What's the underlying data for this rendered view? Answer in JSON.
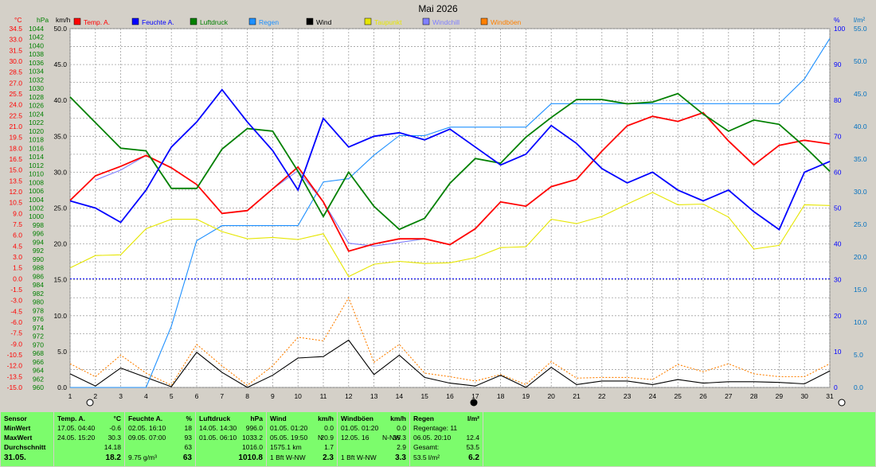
{
  "chart_data": {
    "type": "line",
    "title": "Mai 2026",
    "x_ticks": [
      "1",
      "2",
      "3",
      "4",
      "5",
      "6",
      "7",
      "8",
      "9",
      "10",
      "11",
      "12",
      "13",
      "14",
      "15",
      "16",
      "17",
      "18",
      "19",
      "20",
      "21",
      "22",
      "23",
      "24",
      "25",
      "26",
      "27",
      "28",
      "29",
      "30",
      "31"
    ],
    "axes": {
      "temp_c": {
        "unit": "°C",
        "min": -15.0,
        "max": 34.5,
        "step": 1.5,
        "color": "#ff0000"
      },
      "pressure_hpa": {
        "unit": "hPa",
        "min": 960,
        "max": 1044,
        "step": 2,
        "color": "#008000"
      },
      "wind_kmh": {
        "unit": "km/h",
        "min": 0,
        "max": 50,
        "step": 5,
        "color": "#000000"
      },
      "humidity_pct": {
        "unit": "%",
        "min": 0,
        "max": 100,
        "step": 10,
        "color": "#0000ff"
      },
      "rain_lm2": {
        "unit": "l/m²",
        "min": 0,
        "max": 55,
        "step": 5,
        "color": "#0070c0"
      }
    },
    "legend": [
      {
        "name": "Temp. A.",
        "color": "#ff0000"
      },
      {
        "name": "Feuchte A.",
        "color": "#0000ff"
      },
      {
        "name": "Luftdruck",
        "color": "#008000"
      },
      {
        "name": "Regen",
        "color": "#1e90ff"
      },
      {
        "name": "Wind",
        "color": "#000000"
      },
      {
        "name": "Taupunkt",
        "color": "#e6e600"
      },
      {
        "name": "Windchill",
        "color": "#8080ff"
      },
      {
        "name": "Windböen",
        "color": "#ff8000"
      }
    ],
    "series": [
      {
        "name": "Temp. A.",
        "axis": "temp_c",
        "color": "#ff0000",
        "values": [
          10.8,
          14.2,
          15.5,
          17.0,
          15.3,
          13.0,
          9.0,
          9.4,
          12.4,
          15.4,
          10.6,
          3.8,
          4.8,
          5.5,
          5.5,
          4.7,
          6.9,
          10.6,
          10.0,
          12.7,
          13.7,
          17.6,
          21.1,
          22.4,
          21.7,
          22.9,
          19.0,
          15.7,
          18.4,
          19.1,
          18.6
        ]
      },
      {
        "name": "Feuchte A.",
        "axis": "humidity_pct",
        "color": "#0000ff",
        "values": [
          52,
          50,
          46,
          55,
          67,
          74,
          83,
          74,
          66,
          55,
          75,
          67,
          70,
          71,
          69,
          72,
          67,
          62,
          65,
          73,
          68,
          61,
          57,
          60,
          55,
          52,
          55,
          49,
          44,
          60,
          63
        ]
      },
      {
        "name": "Luftdruck",
        "axis": "pressure_hpa",
        "color": "#008000",
        "values": [
          1028,
          1022,
          1016,
          1015.4,
          1006.6,
          1006.6,
          1015.8,
          1020.6,
          1020.0,
          1010.6,
          1000.0,
          1010.4,
          1002.4,
          997.0,
          999.6,
          1007.8,
          1013.6,
          1012.5,
          1018.6,
          1023.2,
          1027.4,
          1027.4,
          1026.4,
          1026.8,
          1028.8,
          1024.0,
          1020.0,
          1022.6,
          1021.6,
          1016.4,
          1010.6
        ]
      },
      {
        "name": "Regen",
        "axis": "rain_lm2",
        "color": "#1e90ff",
        "values": [
          0,
          0,
          0,
          0,
          9.4,
          22.5,
          24.8,
          24.8,
          24.8,
          24.8,
          31.5,
          32.0,
          35.6,
          38.6,
          38.6,
          39.9,
          39.9,
          39.9,
          39.9,
          43.5,
          43.5,
          43.5,
          43.5,
          43.5,
          43.5,
          43.5,
          43.5,
          43.5,
          43.5,
          47.3,
          53.5
        ]
      },
      {
        "name": "Wind",
        "axis": "wind_kmh",
        "color": "#000000",
        "values": [
          1.9,
          0.2,
          2.7,
          1.4,
          0.1,
          4.9,
          2.1,
          0.0,
          1.7,
          4.1,
          4.3,
          6.6,
          1.8,
          4.5,
          1.4,
          0.6,
          0.2,
          1.7,
          0.0,
          2.8,
          0.4,
          0.9,
          0.9,
          0.4,
          1.1,
          0.6,
          0.8,
          0.8,
          0.7,
          0.5,
          2.3
        ]
      },
      {
        "name": "Taupunkt",
        "axis": "temp_c",
        "color": "#e6e600",
        "values": [
          1.5,
          3.2,
          3.3,
          6.9,
          8.2,
          8.2,
          6.5,
          5.5,
          5.7,
          5.4,
          6.2,
          0.3,
          2.0,
          2.4,
          2.1,
          2.2,
          2.9,
          4.3,
          4.4,
          8.2,
          7.6,
          8.6,
          10.3,
          11.9,
          10.2,
          10.3,
          8.5,
          4.1,
          4.6,
          10.2,
          10.1
        ]
      },
      {
        "name": "Windchill",
        "axis": "temp_c",
        "color": "#8080ff",
        "values": [
          null,
          13.6,
          15.0,
          17.0,
          15.3,
          13.0,
          9.0,
          9.4,
          12.4,
          14.9,
          10.6,
          4.9,
          4.5,
          5.0,
          5.5,
          null,
          null,
          null,
          null,
          null,
          null,
          null,
          null,
          null,
          null,
          null,
          null,
          null,
          null,
          null,
          null
        ]
      },
      {
        "name": "Windböen",
        "axis": "wind_kmh",
        "color": "#ff8000",
        "values": [
          3.3,
          1.5,
          4.5,
          2.0,
          0.3,
          6.0,
          3.0,
          0.3,
          3.0,
          7.0,
          6.5,
          12.5,
          3.5,
          6.0,
          2.0,
          1.5,
          0.9,
          1.8,
          0.4,
          3.6,
          1.3,
          1.4,
          1.4,
          1.1,
          3.2,
          2.2,
          3.3,
          1.9,
          1.5,
          1.5,
          3.3
        ]
      }
    ]
  },
  "table": {
    "sensor": {
      "title": "Sensor",
      "min": "MinWert",
      "max": "MaxWert",
      "avg": "Durchschnitt",
      "date": "31.05."
    },
    "temp": {
      "title": "Temp. A.",
      "unit": "°C",
      "min_date": "17.05.  04:40",
      "min_val": "-0.6",
      "max_date": "24.05.  15:20",
      "max_val": "30.3",
      "avg": "14.18",
      "cur": "18.2"
    },
    "hum": {
      "title": "Feuchte A.",
      "unit": "%",
      "min_date": "02.05.  16:10",
      "min_val": "18",
      "max_date": "09.05.  07:00",
      "max_val": "93",
      "avg": "63",
      "abs": "9.75 g/m³",
      "cur": "63"
    },
    "press": {
      "title": "Luftdruck",
      "unit": "hPa",
      "min_date": "14.05.  14:30",
      "min_val": "996.0",
      "max_date": "01.05.  06:10",
      "max_val": "1033.2",
      "avg": "1016.0",
      "cur": "1010.8"
    },
    "wind": {
      "title": "Wind",
      "unit": "km/h",
      "min_date": "01.05.  01:20",
      "min_val": "0.0",
      "max_date": "05.05.  19:50",
      "max_dir": "N",
      "max_val": "20.9",
      "dist": "1575.1 km",
      "avg": "1.7",
      "cur_bft": "1 Bft W-NW",
      "cur": "2.3"
    },
    "gust": {
      "title": "Windböen",
      "unit": "km/h",
      "min_date": "01.05.  01:20",
      "min_val": "0.0",
      "max_date": "12.05.  16",
      "max_dir": "N-NW",
      "max_val": "35.3",
      "avg": "2.9",
      "cur_bft": "1 Bft W-NW",
      "cur": "3.3"
    },
    "rain": {
      "title": "Regen",
      "unit": "l/m²",
      "days_label": "Regentage: 11",
      "max_date": "06.05.  20:10",
      "max_val": "12.4",
      "total_label": "Gesamt:",
      "total": "53.5",
      "cur_total": "53.5 l/m²",
      "cur": "6.2"
    }
  }
}
